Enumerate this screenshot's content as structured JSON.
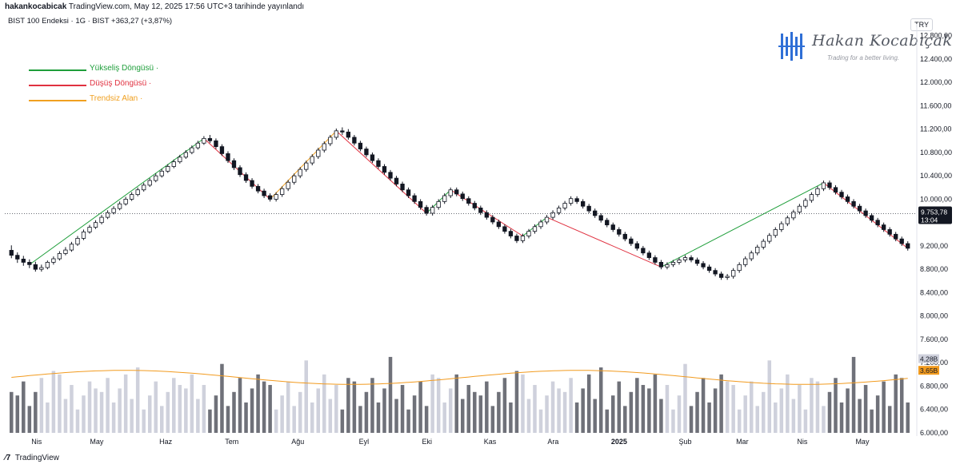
{
  "header": {
    "publisher": "hakankocabicak",
    "published_line": "TradingView.com, May 12, 2025 17:56 UTC+3 tarihinde yayınlandı",
    "symbol_line": "BIST 100 Endeksi · 1G · BIST",
    "change": "+363,27 (+3,87%)"
  },
  "currency_button": "TRY",
  "logo": {
    "name": "Hakan Kocabıçak",
    "tagline": "Trading for a better living."
  },
  "legend": [
    {
      "label": "Yükseliş Döngüsü ·",
      "color": "#1e9e3a"
    },
    {
      "label": "Düşüş Döngüsü ·",
      "color": "#e03140"
    },
    {
      "label": "Trendsiz Alan ·",
      "color": "#f0a020"
    }
  ],
  "footer": {
    "brand": "TradingView",
    "icon": "tradingview-logo-icon"
  },
  "colors": {
    "up": "#131722",
    "down": "#131722",
    "vol_dark": "#6f7179",
    "vol_light": "#cfd1dc",
    "vol_ma": "#f29b1f"
  },
  "chart_data": {
    "type": "candlestick",
    "y_axis": {
      "price_ticks": [
        12800,
        12400,
        12000,
        11600,
        11200,
        10800,
        10400,
        10000,
        9200,
        8800,
        8400,
        8000,
        7600,
        7200,
        6800,
        6400,
        6000
      ],
      "price_tick_labels": [
        "12.800,00",
        "12.400,00",
        "12.000,00",
        "11.600,00",
        "11.200,00",
        "10.800,00",
        "10.400,00",
        "10.000,00",
        "9.200,00",
        "8.800,00",
        "8.400,00",
        "8.000,00",
        "7.600,00",
        "7.200,00",
        "6.800,00",
        "6.400,00",
        "6.000,00"
      ],
      "ylim": [
        6000,
        13000
      ]
    },
    "x_axis": {
      "labels": [
        "Nis",
        "May",
        "Haz",
        "Tem",
        "Ağu",
        "Eyl",
        "Eki",
        "Kas",
        "Ara",
        "2025",
        "Şub",
        "Mar",
        "Nis",
        "May"
      ],
      "label_index": [
        9,
        29,
        52,
        74,
        96,
        118,
        139,
        160,
        181,
        203,
        225,
        244,
        264,
        284
      ]
    },
    "last_price": {
      "value": 9753.78,
      "label": "9.753,78",
      "countdown": "13:04",
      "volume_labels": [
        "4,28B",
        "3,65B"
      ]
    },
    "candles": [
      [
        9125,
        9040,
        9210,
        8990
      ],
      [
        9040,
        8975,
        9090,
        8910
      ],
      [
        8975,
        8920,
        9030,
        8860
      ],
      [
        8920,
        8880,
        8970,
        8820
      ],
      [
        8880,
        8800,
        8930,
        8760
      ],
      [
        8800,
        8830,
        8880,
        8760
      ],
      [
        8830,
        8920,
        8950,
        8800
      ],
      [
        8920,
        8980,
        9020,
        8880
      ],
      [
        8980,
        9070,
        9110,
        8950
      ],
      [
        9070,
        9130,
        9180,
        9040
      ],
      [
        9130,
        9230,
        9270,
        9100
      ],
      [
        9230,
        9330,
        9370,
        9200
      ],
      [
        9330,
        9440,
        9480,
        9300
      ],
      [
        9440,
        9520,
        9560,
        9410
      ],
      [
        9520,
        9600,
        9640,
        9490
      ],
      [
        9600,
        9690,
        9730,
        9570
      ],
      [
        9690,
        9770,
        9810,
        9660
      ],
      [
        9770,
        9840,
        9880,
        9740
      ],
      [
        9840,
        9920,
        9960,
        9810
      ],
      [
        9920,
        10000,
        10040,
        9890
      ],
      [
        10000,
        10080,
        10120,
        9970
      ],
      [
        10080,
        10160,
        10200,
        10050
      ],
      [
        10160,
        10240,
        10280,
        10130
      ],
      [
        10240,
        10320,
        10360,
        10210
      ],
      [
        10320,
        10400,
        10440,
        10290
      ],
      [
        10400,
        10480,
        10520,
        10370
      ],
      [
        10480,
        10560,
        10600,
        10450
      ],
      [
        10560,
        10640,
        10680,
        10530
      ],
      [
        10640,
        10720,
        10760,
        10610
      ],
      [
        10720,
        10800,
        10840,
        10690
      ],
      [
        10800,
        10880,
        10920,
        10770
      ],
      [
        10880,
        10960,
        11000,
        10850
      ],
      [
        10960,
        11040,
        11080,
        10930
      ],
      [
        11040,
        11000,
        11100,
        10960
      ],
      [
        11000,
        10900,
        11040,
        10860
      ],
      [
        10900,
        10780,
        10940,
        10740
      ],
      [
        10780,
        10660,
        10820,
        10620
      ],
      [
        10660,
        10540,
        10700,
        10500
      ],
      [
        10540,
        10420,
        10580,
        10380
      ],
      [
        10420,
        10320,
        10460,
        10280
      ],
      [
        10320,
        10220,
        10360,
        10180
      ],
      [
        10220,
        10140,
        10260,
        10100
      ],
      [
        10140,
        10060,
        10180,
        10020
      ],
      [
        10060,
        10000,
        10100,
        9960
      ],
      [
        10000,
        10080,
        10120,
        9960
      ],
      [
        10080,
        10180,
        10220,
        10040
      ],
      [
        10180,
        10290,
        10330,
        10140
      ],
      [
        10290,
        10400,
        10440,
        10250
      ],
      [
        10400,
        10510,
        10550,
        10360
      ],
      [
        10510,
        10620,
        10660,
        10470
      ],
      [
        10620,
        10730,
        10770,
        10580
      ],
      [
        10730,
        10840,
        10880,
        10690
      ],
      [
        10840,
        10950,
        10990,
        10800
      ],
      [
        10950,
        11060,
        11100,
        10910
      ],
      [
        11060,
        11170,
        11210,
        11020
      ],
      [
        11170,
        11150,
        11230,
        11100
      ],
      [
        11150,
        11060,
        11200,
        11020
      ],
      [
        11060,
        10960,
        11100,
        10920
      ],
      [
        10960,
        10860,
        11000,
        10820
      ],
      [
        10860,
        10760,
        10900,
        10720
      ],
      [
        10760,
        10660,
        10800,
        10620
      ],
      [
        10660,
        10560,
        10700,
        10520
      ],
      [
        10560,
        10460,
        10600,
        10420
      ],
      [
        10460,
        10360,
        10500,
        10320
      ],
      [
        10360,
        10260,
        10400,
        10220
      ],
      [
        10260,
        10160,
        10300,
        10120
      ],
      [
        10160,
        10060,
        10200,
        10020
      ],
      [
        10060,
        9960,
        10100,
        9920
      ],
      [
        9960,
        9860,
        10000,
        9820
      ],
      [
        9860,
        9760,
        9900,
        9720
      ],
      [
        9760,
        9860,
        9900,
        9720
      ],
      [
        9860,
        9960,
        10000,
        9820
      ],
      [
        9960,
        10060,
        10100,
        9920
      ],
      [
        10060,
        10160,
        10200,
        10020
      ],
      [
        10160,
        10090,
        10200,
        10050
      ],
      [
        10090,
        10010,
        10130,
        9970
      ],
      [
        10010,
        9930,
        10050,
        9890
      ],
      [
        9930,
        9850,
        9970,
        9810
      ],
      [
        9850,
        9770,
        9890,
        9730
      ],
      [
        9770,
        9690,
        9810,
        9650
      ],
      [
        9690,
        9610,
        9730,
        9570
      ],
      [
        9610,
        9530,
        9650,
        9490
      ],
      [
        9530,
        9450,
        9570,
        9410
      ],
      [
        9450,
        9370,
        9490,
        9330
      ],
      [
        9370,
        9290,
        9410,
        9250
      ],
      [
        9290,
        9370,
        9410,
        9250
      ],
      [
        9370,
        9450,
        9490,
        9330
      ],
      [
        9450,
        9530,
        9570,
        9410
      ],
      [
        9530,
        9610,
        9650,
        9490
      ],
      [
        9610,
        9690,
        9730,
        9570
      ],
      [
        9690,
        9770,
        9810,
        9650
      ],
      [
        9770,
        9850,
        9890,
        9730
      ],
      [
        9850,
        9930,
        9970,
        9810
      ],
      [
        9930,
        10010,
        10050,
        9890
      ],
      [
        10010,
        9960,
        10050,
        9920
      ],
      [
        9960,
        9880,
        10000,
        9840
      ],
      [
        9880,
        9800,
        9920,
        9760
      ],
      [
        9800,
        9720,
        9840,
        9680
      ],
      [
        9720,
        9640,
        9760,
        9600
      ],
      [
        9640,
        9560,
        9680,
        9520
      ],
      [
        9560,
        9480,
        9600,
        9440
      ],
      [
        9480,
        9400,
        9520,
        9360
      ],
      [
        9400,
        9320,
        9440,
        9280
      ],
      [
        9320,
        9240,
        9360,
        9200
      ],
      [
        9240,
        9160,
        9280,
        9120
      ],
      [
        9160,
        9080,
        9200,
        9040
      ],
      [
        9080,
        9000,
        9120,
        8960
      ],
      [
        9000,
        8920,
        9040,
        8880
      ],
      [
        8920,
        8840,
        8960,
        8800
      ],
      [
        8840,
        8880,
        8920,
        8800
      ],
      [
        8880,
        8920,
        8960,
        8840
      ],
      [
        8920,
        8960,
        9000,
        8880
      ],
      [
        8960,
        9000,
        9040,
        8920
      ],
      [
        9000,
        8960,
        9040,
        8920
      ],
      [
        8960,
        8900,
        9000,
        8860
      ],
      [
        8900,
        8840,
        8940,
        8800
      ],
      [
        8840,
        8780,
        8880,
        8740
      ],
      [
        8780,
        8720,
        8820,
        8680
      ],
      [
        8720,
        8660,
        8760,
        8620
      ],
      [
        8660,
        8680,
        8720,
        8620
      ],
      [
        8680,
        8780,
        8820,
        8640
      ],
      [
        8780,
        8880,
        8920,
        8740
      ],
      [
        8880,
        8980,
        9020,
        8840
      ],
      [
        8980,
        9080,
        9120,
        8940
      ],
      [
        9080,
        9180,
        9220,
        9040
      ],
      [
        9180,
        9280,
        9320,
        9140
      ],
      [
        9280,
        9380,
        9420,
        9240
      ],
      [
        9380,
        9480,
        9520,
        9340
      ],
      [
        9480,
        9580,
        9620,
        9440
      ],
      [
        9580,
        9680,
        9720,
        9540
      ],
      [
        9680,
        9780,
        9820,
        9640
      ],
      [
        9780,
        9880,
        9920,
        9740
      ],
      [
        9880,
        9980,
        10020,
        9840
      ],
      [
        9980,
        10080,
        10120,
        9940
      ],
      [
        10080,
        10180,
        10220,
        10040
      ],
      [
        10180,
        10280,
        10320,
        10140
      ],
      [
        10280,
        10200,
        10320,
        10160
      ],
      [
        10200,
        10120,
        10240,
        10080
      ],
      [
        10120,
        10040,
        10160,
        10000
      ],
      [
        10040,
        9960,
        10080,
        9920
      ],
      [
        9960,
        9880,
        10000,
        9840
      ],
      [
        9880,
        9800,
        9920,
        9760
      ],
      [
        9800,
        9720,
        9840,
        9680
      ],
      [
        9720,
        9640,
        9760,
        9600
      ],
      [
        9640,
        9560,
        9680,
        9520
      ],
      [
        9560,
        9480,
        9600,
        9440
      ],
      [
        9480,
        9400,
        9520,
        9360
      ],
      [
        9400,
        9320,
        9440,
        9280
      ],
      [
        9320,
        9240,
        9360,
        9200
      ],
      [
        9240,
        9160,
        9280,
        9120
      ]
    ],
    "volume": [
      7000,
      6900,
      6800,
      6700,
      6600,
      6500,
      6900,
      7000,
      7100,
      6900
    ],
    "annotations": [
      {
        "label": "Yükseliş Döngüsü",
        "color": "#1e9e3a"
      },
      {
        "label": "Düşüş Döngüsü",
        "color": "#e03140"
      },
      {
        "label": "Trendsiz Alan",
        "color": "#f0a020"
      }
    ]
  }
}
